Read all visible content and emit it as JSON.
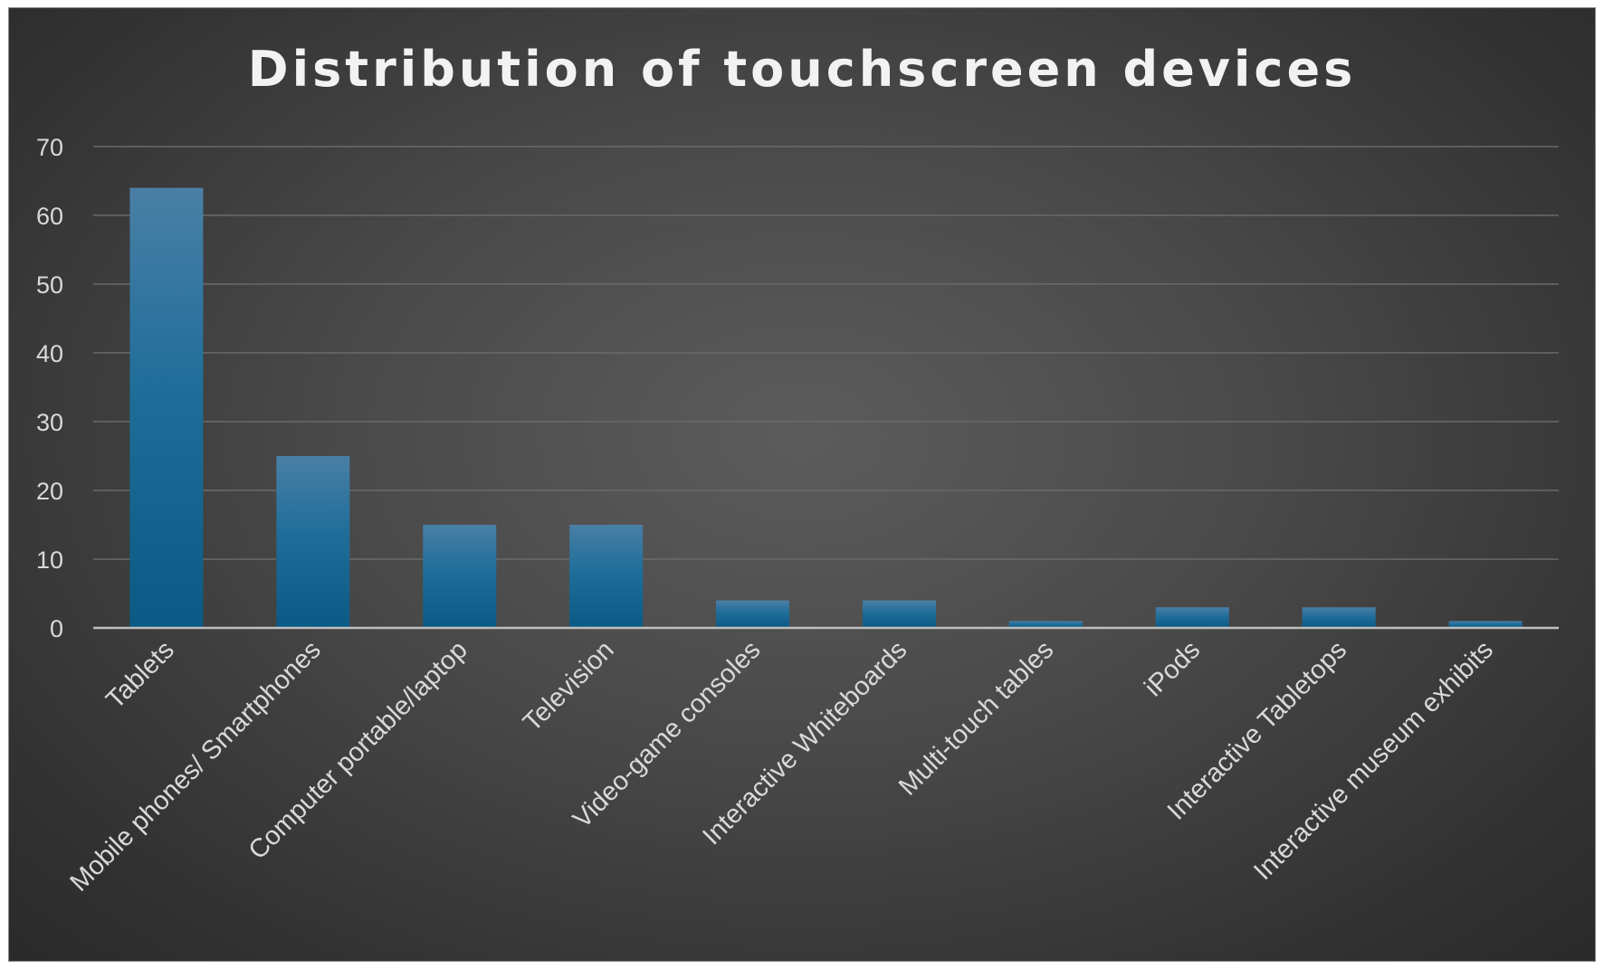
{
  "chart_data": {
    "type": "bar",
    "title": "Distribution of touchscreen devices",
    "categories": [
      "Tablets",
      "Mobile phones/ Smartphones",
      "Computer portable/laptop",
      "Television",
      "Video-game consoles",
      "Interactive Whiteboards",
      "Multi-touch tables",
      "iPods",
      "Interactive Tabletops",
      "Interactive museum exhibits"
    ],
    "values": [
      64,
      25,
      15,
      15,
      4,
      4,
      1,
      3,
      3,
      1
    ],
    "ylim": [
      0,
      70
    ],
    "yticks": [
      "0",
      "10",
      "20",
      "30",
      "40",
      "50",
      "60",
      "70"
    ],
    "grid": true,
    "legend": "none",
    "bar_color": "#1f6e9a"
  }
}
